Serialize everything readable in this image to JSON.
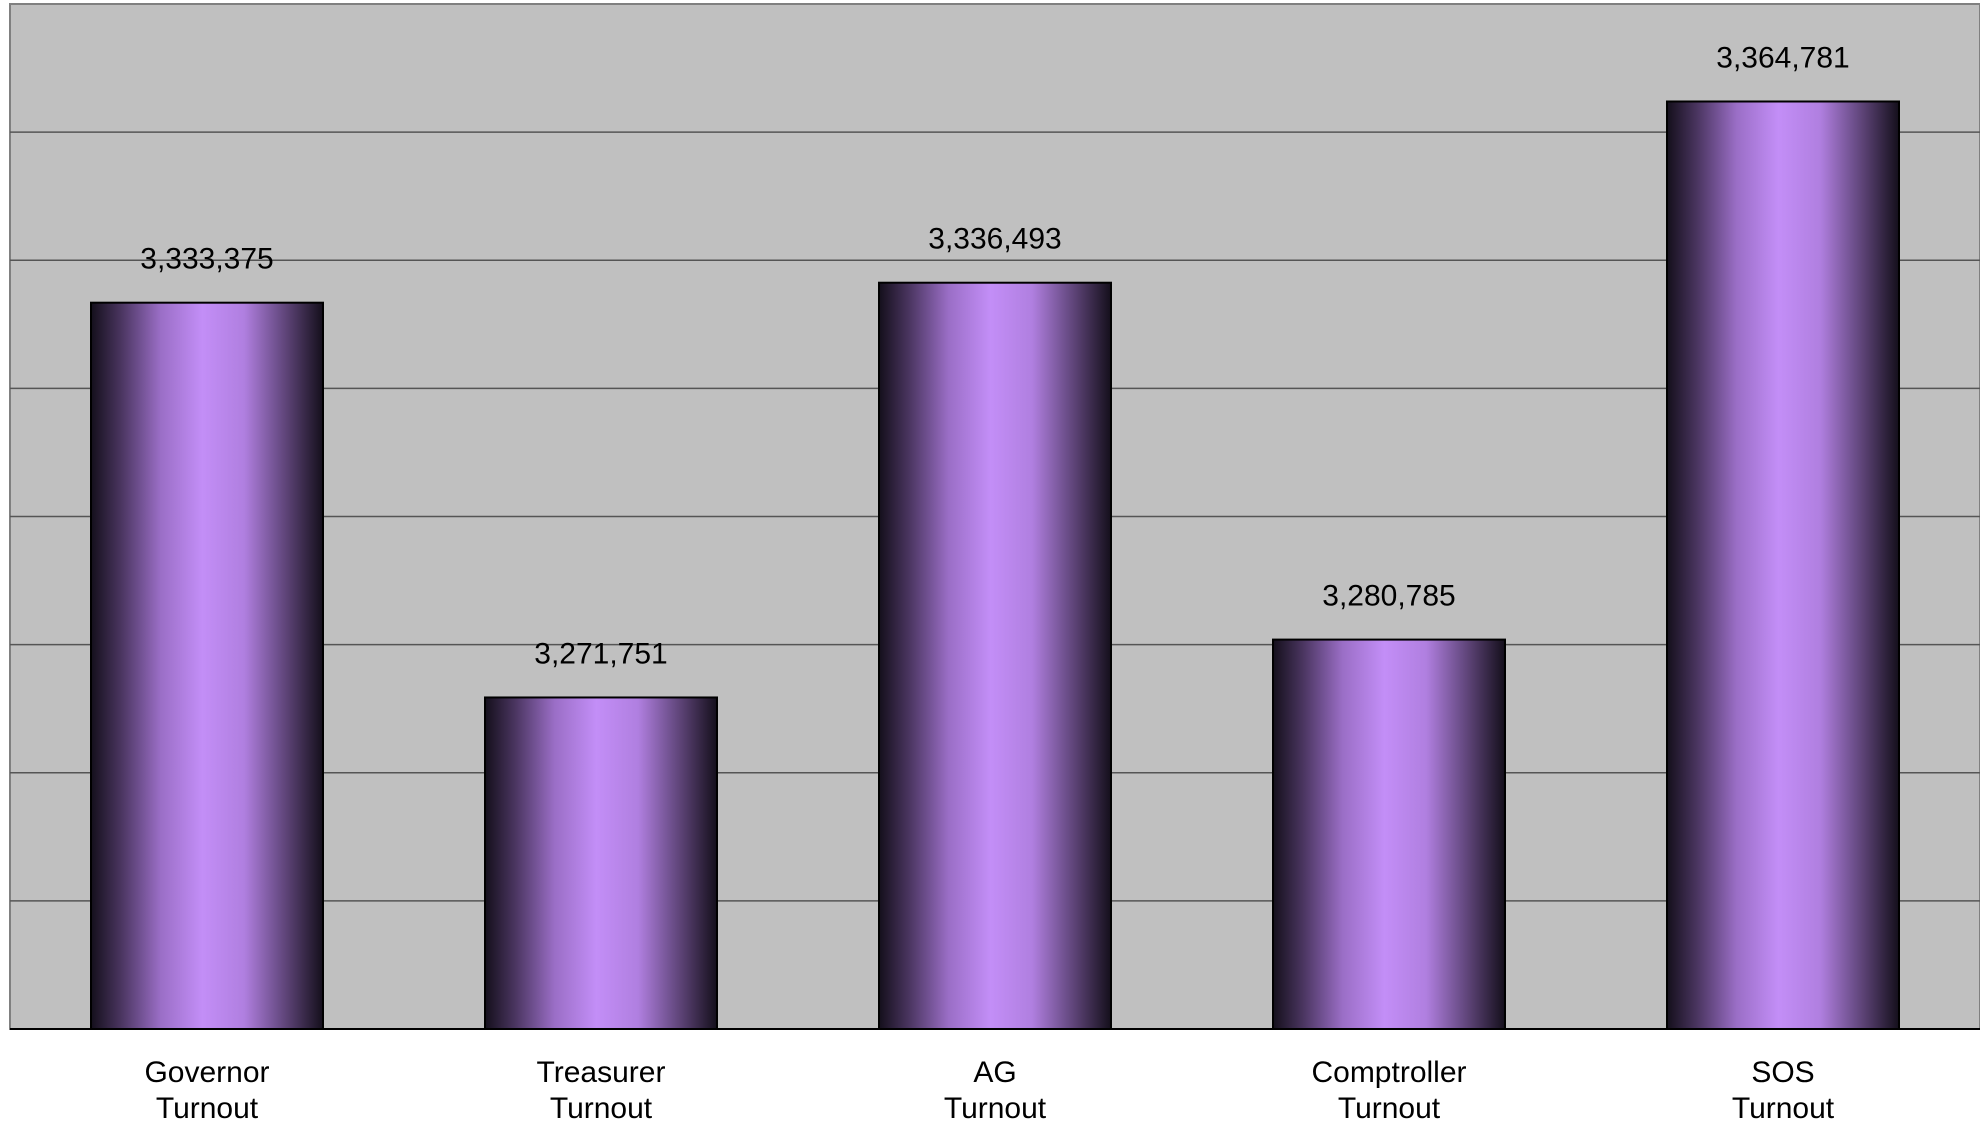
{
  "chart_data": {
    "type": "bar",
    "categories": [
      [
        "Governor",
        "Turnout"
      ],
      [
        "Treasurer",
        "Turnout"
      ],
      [
        "AG",
        "Turnout"
      ],
      [
        "Comptroller",
        "Turnout"
      ],
      [
        "SOS",
        "Turnout"
      ]
    ],
    "values": [
      3333375,
      3271751,
      3336493,
      3280785,
      3364781
    ],
    "value_labels": [
      "3,333,375",
      "3,271,751",
      "3,336,493",
      "3,280,785",
      "3,364,781"
    ],
    "ylim": [
      3220000,
      3380000
    ],
    "grid_step": 20000,
    "grid": true,
    "legend": "none",
    "colors": {
      "plot_background": "#c0c0c0",
      "bar_center": "#c38ef7",
      "bar_edge": "#140f1b",
      "gridline": "#555555",
      "border": "#000000"
    }
  }
}
